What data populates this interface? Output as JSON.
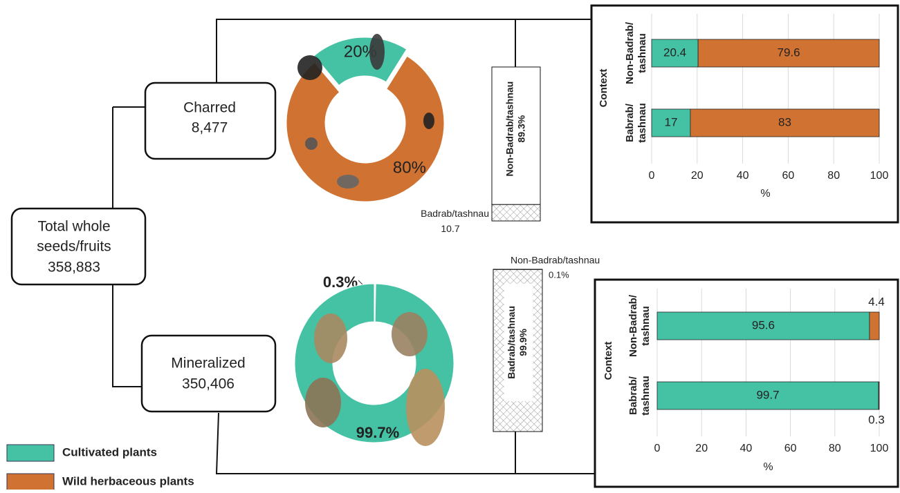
{
  "nodes": [
    {
      "label": "Total whole seeds/fruits",
      "value": "358,883"
    },
    {
      "label": "Charred",
      "value": "8,477"
    },
    {
      "label": "Mineralized",
      "value": "350,406"
    }
  ],
  "legend": [
    {
      "name": "Cultivated plants",
      "color": "#45c1a4"
    },
    {
      "name": "Wild herbaceous plants",
      "color": "#d07232"
    }
  ],
  "chart_data": [
    {
      "type": "pie",
      "hole": true,
      "values": [
        20,
        80
      ],
      "value_labels": [
        "20%",
        "80%"
      ],
      "colors": [
        "#45c1a4",
        "#d07232"
      ]
    },
    {
      "type": "stacked-column",
      "series": [
        {
          "name": "Badrab/tashnau",
          "values": [
            10.7
          ],
          "value_labels": [
            "10.7"
          ],
          "color": "#ffffff",
          "hatch": true
        },
        {
          "name": "Non-Badrab/tashnau",
          "values": [
            89.3
          ],
          "value_labels": [
            "89.3%"
          ],
          "color": "#ffffff",
          "hatch": false
        }
      ]
    },
    {
      "type": "stacked-barh",
      "ylabel": "Context",
      "xlabel": "%",
      "categories": [
        "Non-Badrab/ tashnau",
        "Babrab/ tashnau"
      ],
      "series": [
        {
          "name": "Cultivated plants",
          "color": "#45c1a4",
          "values": [
            20.4,
            17
          ]
        },
        {
          "name": "Wild herbaceous plants",
          "color": "#d07232",
          "values": [
            79.6,
            83
          ]
        }
      ],
      "xlim": [
        0,
        100
      ],
      "xticks": [
        0,
        20,
        40,
        60,
        80,
        100
      ],
      "grid": true
    },
    {
      "type": "pie",
      "hole": true,
      "values": [
        0.3,
        99.7
      ],
      "value_labels": [
        "0.3%",
        "99.7%"
      ],
      "colors": [
        "#ffffff",
        "#45c1a4"
      ]
    },
    {
      "type": "stacked-column",
      "series": [
        {
          "name": "Badrab/tashnau",
          "values": [
            99.9
          ],
          "value_labels": [
            "99.9%"
          ],
          "color": "#ffffff",
          "hatch": true
        },
        {
          "name": "Non-Badrab/tashnau",
          "values": [
            0.1
          ],
          "value_labels": [
            "0.1%"
          ],
          "color": "#ffffff",
          "hatch": false
        }
      ]
    },
    {
      "type": "stacked-barh",
      "ylabel": "Context",
      "xlabel": "%",
      "categories": [
        "Non-Badrab/ tashnau",
        "Babrab/ tashnau"
      ],
      "series": [
        {
          "name": "Cultivated plants",
          "color": "#45c1a4",
          "values": [
            95.6,
            99.7
          ]
        },
        {
          "name": "Wild herbaceous plants",
          "color": "#d07232",
          "values": [
            4.4,
            0.3
          ]
        }
      ],
      "xlim": [
        0,
        100
      ],
      "xticks": [
        0,
        20,
        40,
        60,
        80,
        100
      ],
      "grid": true
    }
  ]
}
